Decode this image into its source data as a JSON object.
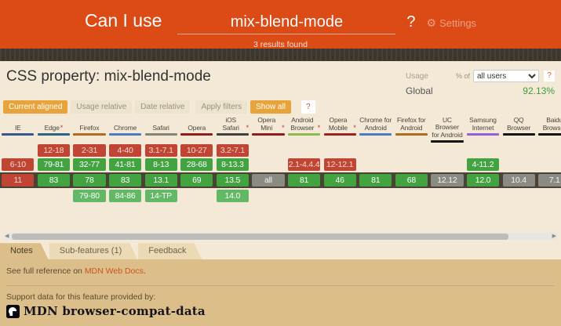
{
  "header": {
    "brand": "Can I use",
    "search_value": "mix-blend-mode",
    "question": "?",
    "settings_label": "Settings",
    "results": "3 results found"
  },
  "toolbar": {
    "title": "CSS property: mix-blend-mode",
    "usage_label": "Usage",
    "percent_of": "% of",
    "usage_option": "all users",
    "usage_help": "?",
    "global_label": "Global",
    "global_value": "92.13%",
    "filters": [
      {
        "label": "Current aligned",
        "active": true
      },
      {
        "label": "Usage relative",
        "active": false
      },
      {
        "label": "Date relative",
        "active": false
      },
      {
        "label": "Apply filters",
        "active": false
      },
      {
        "label": "Show all",
        "active": true
      }
    ],
    "filters_help": "?"
  },
  "table": {
    "browsers": [
      {
        "name": "IE",
        "note": false,
        "accent": "#35588C"
      },
      {
        "name": "Edge",
        "note": true,
        "accent": "#2D6486"
      },
      {
        "name": "Firefox",
        "note": false,
        "accent": "#B26C1E"
      },
      {
        "name": "Chrome",
        "note": false,
        "accent": "#4A7DC4"
      },
      {
        "name": "Safari",
        "note": false,
        "accent": "#85857D"
      },
      {
        "name": "Opera",
        "note": false,
        "accent": "#8F1F1F"
      },
      {
        "name": "iOS Safari",
        "note": true,
        "accent": "#40403C"
      },
      {
        "name": "Opera Mini",
        "note": true,
        "accent": "#8F1F1F"
      },
      {
        "name": "Android Browser",
        "note": true,
        "accent": "#8FB94E"
      },
      {
        "name": "Opera Mobile",
        "note": true,
        "accent": "#9C2424"
      },
      {
        "name": "Chrome for Android",
        "note": false,
        "accent": "#4A7DC4"
      },
      {
        "name": "Firefox for Android",
        "note": false,
        "accent": "#A8701C"
      },
      {
        "name": "UC Browser for Android",
        "note": false,
        "accent": "#141414"
      },
      {
        "name": "Samsung Internet",
        "note": false,
        "accent": "#9063D8"
      },
      {
        "name": "QQ Browser",
        "note": false,
        "accent": "#141414"
      },
      {
        "name": "Baidu Browser",
        "note": false,
        "accent": "#141414"
      }
    ],
    "rows": [
      {
        "era": "past2",
        "cells": [
          null,
          {
            "t": "12-18",
            "s": "unsupported"
          },
          {
            "t": "2-31",
            "s": "unsupported"
          },
          {
            "t": "4-40",
            "s": "unsupported"
          },
          {
            "t": "3.1-7.1",
            "s": "unsupported"
          },
          {
            "t": "10-27",
            "s": "unsupported"
          },
          {
            "t": "3.2-7.1",
            "s": "unsupported"
          },
          null,
          null,
          null,
          null,
          null,
          null,
          null,
          null,
          null
        ]
      },
      {
        "era": "past1",
        "cells": [
          {
            "t": "6-10",
            "s": "unsupported"
          },
          {
            "t": "79-81",
            "s": "supported"
          },
          {
            "t": "32-77",
            "s": "supported"
          },
          {
            "t": "41-81",
            "s": "supported"
          },
          {
            "t": "8-13",
            "s": "supported"
          },
          {
            "t": "28-68",
            "s": "supported"
          },
          {
            "t": "8-13.3",
            "s": "supported"
          },
          null,
          {
            "t": "2.1-4.4.4",
            "s": "unsupported"
          },
          {
            "t": "12-12.1",
            "s": "unsupported"
          },
          null,
          null,
          null,
          {
            "t": "4-11.2",
            "s": "supported"
          },
          null,
          null
        ]
      },
      {
        "era": "current",
        "cells": [
          {
            "t": "11",
            "s": "unsupported"
          },
          {
            "t": "83",
            "s": "supported"
          },
          {
            "t": "78",
            "s": "supported"
          },
          {
            "t": "83",
            "s": "supported"
          },
          {
            "t": "13.1",
            "s": "supported"
          },
          {
            "t": "69",
            "s": "supported"
          },
          {
            "t": "13.5",
            "s": "supported"
          },
          {
            "t": "all",
            "s": "neutral"
          },
          {
            "t": "81",
            "s": "supported"
          },
          {
            "t": "46",
            "s": "supported"
          },
          {
            "t": "81",
            "s": "supported"
          },
          {
            "t": "68",
            "s": "supported"
          },
          {
            "t": "12.12",
            "s": "neutral"
          },
          {
            "t": "12.0",
            "s": "supported"
          },
          {
            "t": "10.4",
            "s": "neutral"
          },
          {
            "t": "7.1",
            "s": "neutral"
          }
        ]
      },
      {
        "era": "future",
        "cells": [
          null,
          null,
          {
            "t": "79-80",
            "s": "future"
          },
          {
            "t": "84-86",
            "s": "future"
          },
          {
            "t": "14-TP",
            "s": "future"
          },
          null,
          {
            "t": "14.0",
            "s": "future"
          },
          null,
          null,
          null,
          null,
          null,
          null,
          null,
          null,
          null
        ]
      }
    ]
  },
  "tabs": [
    {
      "label": "Notes",
      "active": true
    },
    {
      "label": "Sub-features (1)",
      "active": false
    },
    {
      "label": "Feedback",
      "active": false
    }
  ],
  "notes": {
    "prefix": "See full reference on ",
    "link_label": "MDN Web Docs",
    "suffix": "."
  },
  "footer": {
    "provided_by": "Support data for this feature provided by:",
    "source_name": "MDN browser-compat-data"
  },
  "colors": {
    "brand_orange": "#DC4A15",
    "button_orange": "#E9A33B",
    "usage_green": "#3B9E3B",
    "link_orange": "#CC5326",
    "supported": "#42A340",
    "supported_text": "#FFFFFF",
    "future": "#62B865",
    "future_text": "#FFFFFF",
    "unsupported": "#C04535",
    "unsupported_text": "#F7DBD2",
    "neutral": "#8B8B84",
    "neutral_text": "#F4F4EF"
  }
}
